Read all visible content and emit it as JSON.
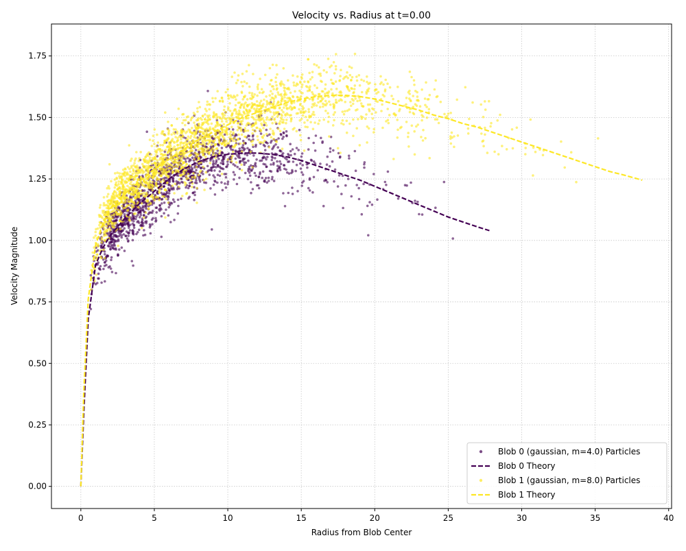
{
  "chart_data": {
    "type": "scatter",
    "title": "Velocity vs. Radius at t=0.00",
    "xlabel": "Radius from Blob Center",
    "ylabel": "Velocity Magnitude",
    "xlim": [
      -2,
      40.2
    ],
    "ylim": [
      -0.09,
      1.88
    ],
    "xticks": [
      0,
      5,
      10,
      15,
      20,
      25,
      30,
      35,
      40
    ],
    "yticks": [
      0.0,
      0.25,
      0.5,
      0.75,
      1.0,
      1.25,
      1.5,
      1.75
    ],
    "xtick_labels": [
      "0",
      "5",
      "10",
      "15",
      "20",
      "25",
      "30",
      "35",
      "40"
    ],
    "ytick_labels": [
      "0.00",
      "0.25",
      "0.50",
      "0.75",
      "1.00",
      "1.25",
      "1.50",
      "1.75"
    ],
    "grid": true,
    "legend_position": "lower-right",
    "series": [
      {
        "name": "Blob 0 (gaussian, m=4.0) Particles",
        "kind": "scatter",
        "color": "#440154",
        "cloud": {
          "r_max": 27.8,
          "core_radius": 7.5,
          "point_count": 1500,
          "spread": 0.07
        }
      },
      {
        "name": "Blob 0 Theory",
        "kind": "line",
        "color": "#440154",
        "dash": true,
        "x": [
          0.0,
          0.2,
          0.5,
          1.0,
          1.5,
          2.0,
          3.0,
          4.0,
          5.0,
          6.0,
          7.0,
          8.0,
          9.0,
          10.0,
          11.0,
          12.0,
          13.0,
          14.0,
          15.0,
          16.0,
          17.0,
          18.0,
          19.0,
          20.0,
          21.0,
          22.0,
          23.0,
          24.0,
          25.0,
          26.0,
          27.0,
          27.8
        ],
        "y": [
          0.0,
          0.3,
          0.68,
          0.9,
          0.97,
          1.02,
          1.09,
          1.15,
          1.2,
          1.25,
          1.29,
          1.32,
          1.34,
          1.35,
          1.355,
          1.355,
          1.35,
          1.34,
          1.325,
          1.305,
          1.285,
          1.265,
          1.245,
          1.22,
          1.195,
          1.17,
          1.145,
          1.12,
          1.095,
          1.075,
          1.055,
          1.04
        ]
      },
      {
        "name": "Blob 1 (gaussian, m=8.0) Particles",
        "kind": "scatter",
        "color": "#fde725",
        "cloud": {
          "r_max": 38.2,
          "core_radius": 10.5,
          "point_count": 2200,
          "spread": 0.07
        }
      },
      {
        "name": "Blob 1 Theory",
        "kind": "line",
        "color": "#fde725",
        "dash": true,
        "x": [
          0.0,
          0.2,
          0.5,
          1.0,
          1.5,
          2.0,
          3.0,
          4.0,
          5.0,
          6.0,
          7.0,
          8.0,
          9.0,
          10.0,
          11.0,
          12.0,
          13.0,
          14.0,
          15.0,
          16.0,
          17.0,
          18.0,
          19.0,
          20.0,
          21.0,
          22.0,
          23.0,
          24.0,
          25.0,
          26.0,
          27.0,
          28.0,
          29.0,
          30.0,
          31.0,
          32.0,
          33.0,
          34.0,
          35.0,
          36.0,
          37.0,
          38.2
        ],
        "y": [
          0.0,
          0.38,
          0.76,
          0.98,
          1.07,
          1.13,
          1.19,
          1.24,
          1.29,
          1.33,
          1.37,
          1.41,
          1.44,
          1.47,
          1.5,
          1.52,
          1.54,
          1.56,
          1.575,
          1.585,
          1.59,
          1.59,
          1.585,
          1.575,
          1.56,
          1.545,
          1.53,
          1.51,
          1.495,
          1.475,
          1.46,
          1.44,
          1.42,
          1.4,
          1.38,
          1.36,
          1.34,
          1.32,
          1.3,
          1.28,
          1.265,
          1.245
        ]
      }
    ]
  }
}
